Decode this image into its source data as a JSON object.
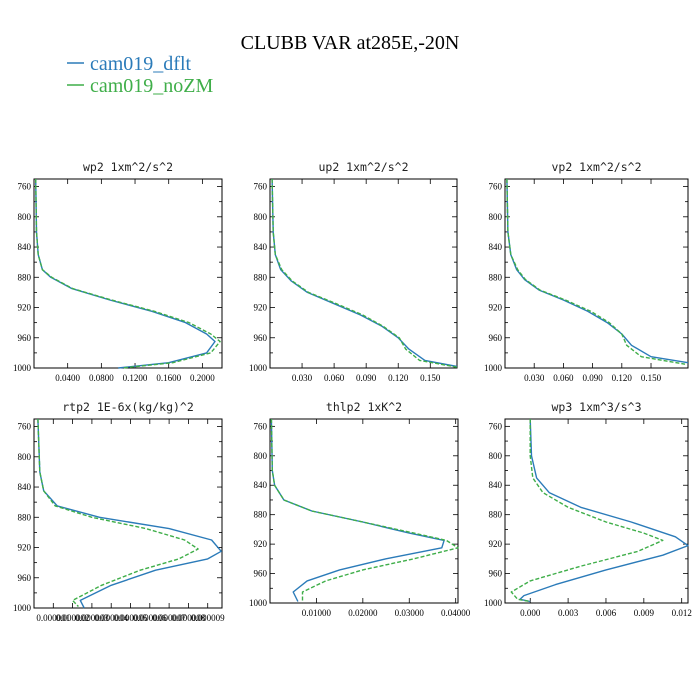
{
  "figure": {
    "title": "CLUBB VAR at285E,-20N",
    "legend": [
      {
        "label": "cam019_dflt",
        "color": "#2b7bb9",
        "dash": "solid"
      },
      {
        "label": "cam019_noZM",
        "color": "#3fae49",
        "dash": "dashed"
      }
    ]
  },
  "chart_data": [
    {
      "type": "line",
      "title": "wp2   1xm^2/s^2",
      "ylim": [
        1000,
        750
      ],
      "y_ticks": [
        760,
        800,
        840,
        880,
        920,
        960,
        1000
      ],
      "xlim": [
        0.0,
        0.2233
      ],
      "x_ticks": [
        0.04,
        0.08,
        0.12,
        0.16,
        0.2
      ],
      "x_tick_labels": [
        "0.0400",
        "0.0800",
        "0.1200",
        "0.1600",
        "0.2000"
      ],
      "series": [
        {
          "name": "cam019_dflt",
          "points": [
            [
              0.002,
              750
            ],
            [
              0.003,
              820
            ],
            [
              0.005,
              850
            ],
            [
              0.01,
              870
            ],
            [
              0.02,
              880
            ],
            [
              0.045,
              895
            ],
            [
              0.09,
              910
            ],
            [
              0.14,
              925
            ],
            [
              0.18,
              940
            ],
            [
              0.205,
              955
            ],
            [
              0.215,
              965
            ],
            [
              0.205,
              980
            ],
            [
              0.16,
              993
            ],
            [
              0.1,
              1000
            ]
          ]
        },
        {
          "name": "cam019_noZM",
          "points": [
            [
              0.002,
              750
            ],
            [
              0.003,
              820
            ],
            [
              0.005,
              850
            ],
            [
              0.01,
              870
            ],
            [
              0.021,
              880
            ],
            [
              0.046,
              895
            ],
            [
              0.092,
              910
            ],
            [
              0.143,
              925
            ],
            [
              0.184,
              940
            ],
            [
              0.21,
              955
            ],
            [
              0.221,
              965
            ],
            [
              0.21,
              980
            ],
            [
              0.165,
              993
            ],
            [
              0.105,
              1000
            ]
          ]
        }
      ]
    },
    {
      "type": "line",
      "title": "up2   1xm^2/s^2",
      "ylim": [
        1000,
        750
      ],
      "y_ticks": [
        760,
        800,
        840,
        880,
        920,
        960,
        1000
      ],
      "xlim": [
        0.0,
        0.175
      ],
      "x_ticks": [
        0.03,
        0.06,
        0.09,
        0.12,
        0.15
      ],
      "x_tick_labels": [
        "0.030",
        "0.060",
        "0.090",
        "0.120",
        "0.150"
      ],
      "series": [
        {
          "name": "cam019_dflt",
          "points": [
            [
              0.002,
              750
            ],
            [
              0.003,
              820
            ],
            [
              0.005,
              850
            ],
            [
              0.01,
              870
            ],
            [
              0.02,
              885
            ],
            [
              0.035,
              900
            ],
            [
              0.06,
              915
            ],
            [
              0.085,
              930
            ],
            [
              0.105,
              945
            ],
            [
              0.12,
              960
            ],
            [
              0.13,
              975
            ],
            [
              0.145,
              990
            ],
            [
              0.175,
              998
            ]
          ]
        },
        {
          "name": "cam019_noZM",
          "points": [
            [
              0.002,
              750
            ],
            [
              0.003,
              820
            ],
            [
              0.005,
              850
            ],
            [
              0.011,
              870
            ],
            [
              0.021,
              885
            ],
            [
              0.036,
              900
            ],
            [
              0.062,
              915
            ],
            [
              0.087,
              930
            ],
            [
              0.106,
              945
            ],
            [
              0.121,
              960
            ],
            [
              0.127,
              975
            ],
            [
              0.14,
              990
            ],
            [
              0.175,
              999
            ]
          ]
        }
      ]
    },
    {
      "type": "line",
      "title": "vp2   1xm^2/s^2",
      "ylim": [
        1000,
        750
      ],
      "y_ticks": [
        760,
        800,
        840,
        880,
        920,
        960,
        1000
      ],
      "xlim": [
        0.0,
        0.188
      ],
      "x_ticks": [
        0.03,
        0.06,
        0.09,
        0.12,
        0.15
      ],
      "x_tick_labels": [
        "0.030",
        "0.060",
        "0.090",
        "0.120",
        "0.150"
      ],
      "series": [
        {
          "name": "cam019_dflt",
          "points": [
            [
              0.002,
              750
            ],
            [
              0.003,
              820
            ],
            [
              0.006,
              850
            ],
            [
              0.012,
              870
            ],
            [
              0.02,
              883
            ],
            [
              0.035,
              897
            ],
            [
              0.06,
              910
            ],
            [
              0.085,
              925
            ],
            [
              0.105,
              940
            ],
            [
              0.12,
              955
            ],
            [
              0.13,
              970
            ],
            [
              0.15,
              985
            ],
            [
              0.188,
              993
            ]
          ]
        },
        {
          "name": "cam019_noZM",
          "points": [
            [
              0.002,
              750
            ],
            [
              0.003,
              820
            ],
            [
              0.006,
              850
            ],
            [
              0.013,
              870
            ],
            [
              0.021,
              883
            ],
            [
              0.036,
              897
            ],
            [
              0.062,
              910
            ],
            [
              0.088,
              925
            ],
            [
              0.107,
              940
            ],
            [
              0.12,
              955
            ],
            [
              0.125,
              970
            ],
            [
              0.14,
              985
            ],
            [
              0.185,
              995
            ]
          ]
        }
      ]
    },
    {
      "type": "line",
      "title": "rtp2   1E-6x(kg/kg)^2",
      "ylim": [
        1000,
        750
      ],
      "y_ticks": [
        760,
        800,
        840,
        880,
        920,
        960,
        1000
      ],
      "xlim": [
        0.0,
        9.74e-07
      ],
      "x_ticks": [
        1e-07,
        2e-07,
        3e-07,
        4e-07,
        5e-07,
        6e-07,
        7e-07,
        8e-07,
        9e-07
      ],
      "x_tick_labels": [
        "0.000001",
        "0.000002",
        "0.000003",
        "0.000004",
        "0.000005",
        "0.000006",
        "0.000007",
        "0.000008",
        "0.000009"
      ],
      "series": [
        {
          "name": "cam019_dflt",
          "points": [
            [
              2e-08,
              750
            ],
            [
              3e-08,
              820
            ],
            [
              5e-08,
              845
            ],
            [
              1.2e-07,
              865
            ],
            [
              3.4e-07,
              880
            ],
            [
              7e-07,
              895
            ],
            [
              9.2e-07,
              910
            ],
            [
              9.7e-07,
              925
            ],
            [
              9e-07,
              935
            ],
            [
              6.3e-07,
              950
            ],
            [
              4e-07,
              970
            ],
            [
              2.4e-07,
              990
            ],
            [
              2.6e-07,
              1000
            ]
          ]
        },
        {
          "name": "cam019_noZM",
          "points": [
            [
              2e-08,
              750
            ],
            [
              3e-08,
              820
            ],
            [
              5e-08,
              845
            ],
            [
              1.1e-07,
              865
            ],
            [
              3e-07,
              880
            ],
            [
              5.8e-07,
              895
            ],
            [
              7.8e-07,
              910
            ],
            [
              8.5e-07,
              922
            ],
            [
              7.5e-07,
              935
            ],
            [
              5.5e-07,
              950
            ],
            [
              3.5e-07,
              970
            ],
            [
              2e-07,
              990
            ],
            [
              2.3e-07,
              998
            ]
          ]
        }
      ]
    },
    {
      "type": "line",
      "title": "thlp2   1xK^2",
      "ylim": [
        1000,
        750
      ],
      "y_ticks": [
        760,
        800,
        840,
        880,
        920,
        960,
        1000
      ],
      "xlim": [
        0.0,
        0.0405
      ],
      "x_ticks": [
        0.01,
        0.02,
        0.03,
        0.04
      ],
      "x_tick_labels": [
        "0.01000",
        "0.02000",
        "0.03000",
        "0.04000"
      ],
      "series": [
        {
          "name": "cam019_dflt",
          "points": [
            [
              0.0003,
              750
            ],
            [
              0.0005,
              820
            ],
            [
              0.001,
              840
            ],
            [
              0.003,
              860
            ],
            [
              0.009,
              875
            ],
            [
              0.02,
              890
            ],
            [
              0.03,
              905
            ],
            [
              0.0375,
              915
            ],
            [
              0.037,
              925
            ],
            [
              0.025,
              940
            ],
            [
              0.015,
              955
            ],
            [
              0.008,
              970
            ],
            [
              0.005,
              985
            ],
            [
              0.006,
              998
            ]
          ]
        },
        {
          "name": "cam019_noZM",
          "points": [
            [
              0.0003,
              750
            ],
            [
              0.0005,
              820
            ],
            [
              0.001,
              840
            ],
            [
              0.003,
              860
            ],
            [
              0.009,
              875
            ],
            [
              0.02,
              890
            ],
            [
              0.031,
              905
            ],
            [
              0.038,
              915
            ],
            [
              0.0405,
              925
            ],
            [
              0.031,
              940
            ],
            [
              0.02,
              955
            ],
            [
              0.012,
              970
            ],
            [
              0.007,
              985
            ],
            [
              0.007,
              997
            ]
          ]
        }
      ]
    },
    {
      "type": "line",
      "title": "wp3   1xm^3/s^3",
      "ylim": [
        1000,
        750
      ],
      "y_ticks": [
        760,
        800,
        840,
        880,
        920,
        960,
        1000
      ],
      "xlim": [
        -0.002,
        0.0125
      ],
      "x_ticks": [
        0.0,
        0.003,
        0.006,
        0.009,
        0.012
      ],
      "x_tick_labels": [
        "0.000",
        "0.003",
        "0.006",
        "0.009",
        "0.012"
      ],
      "series": [
        {
          "name": "cam019_dflt",
          "points": [
            [
              0.0,
              750
            ],
            [
              0.0001,
              800
            ],
            [
              0.0005,
              830
            ],
            [
              0.0015,
              850
            ],
            [
              0.004,
              870
            ],
            [
              0.008,
              890
            ],
            [
              0.0115,
              910
            ],
            [
              0.0125,
              922
            ],
            [
              0.0105,
              935
            ],
            [
              0.006,
              955
            ],
            [
              0.002,
              975
            ],
            [
              -0.0005,
              990
            ],
            [
              -0.0008,
              995
            ],
            [
              0.0,
              998
            ]
          ]
        },
        {
          "name": "cam019_noZM",
          "points": [
            [
              0.0,
              750
            ],
            [
              0.0,
              800
            ],
            [
              0.0002,
              830
            ],
            [
              0.001,
              850
            ],
            [
              0.003,
              870
            ],
            [
              0.006,
              890
            ],
            [
              0.009,
              905
            ],
            [
              0.0105,
              915
            ],
            [
              0.0085,
              930
            ],
            [
              0.004,
              950
            ],
            [
              0.0,
              970
            ],
            [
              -0.0015,
              985
            ],
            [
              -0.001,
              995
            ],
            [
              0.0,
              998
            ]
          ]
        }
      ]
    }
  ]
}
